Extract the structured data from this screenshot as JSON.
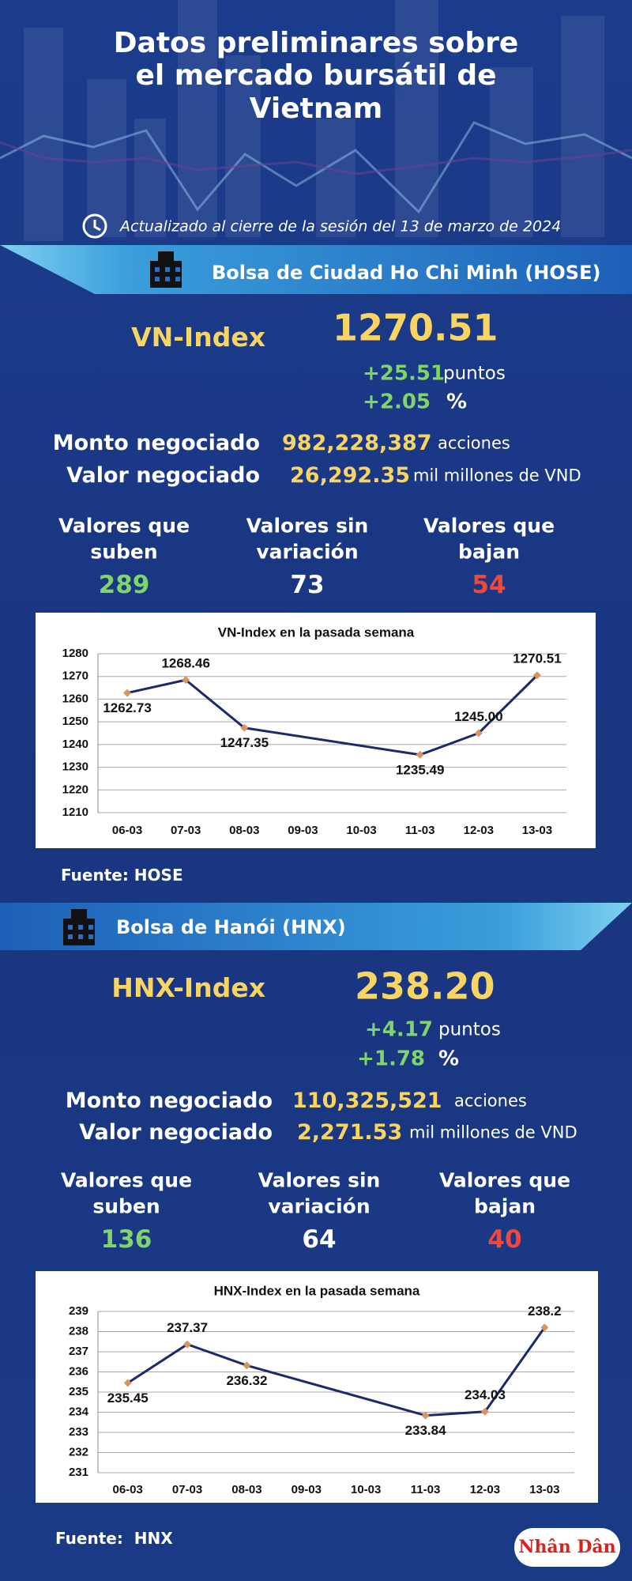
{
  "infographic": {
    "title": "Datos preliminares sobre el mercado bursátil de Vietnam",
    "updated": "Actualizado al cierre de la sesión del 13 de marzo de 2024",
    "logo": "Nhân Dân",
    "sections": [
      {
        "heading": "Bolsa de Ciudad Ho Chi Minh (HOSE)",
        "index_name": "VN-Index",
        "index_value": "1270.51",
        "change": "+25.51",
        "change_unit": "puntos",
        "pct": "+2.05",
        "pct_unit": "%",
        "volume_label": "Monto negociado",
        "volume": "982,228,387",
        "volume_unit": "acciones",
        "turnover_label": "Valor negociado",
        "turnover": "26,292.35",
        "turnover_unit": "mil millones de VND",
        "breadth": [
          {
            "label": "Valores que suben",
            "count": "289"
          },
          {
            "label": "Valores sin variación",
            "count": "73"
          },
          {
            "label": "Valores que bajan",
            "count": "54"
          }
        ],
        "source": "Fuente: HOSE"
      },
      {
        "heading": "Bolsa de Hanói (HNX)",
        "index_name": "HNX-Index",
        "index_value": "238.20",
        "change": "+4.17",
        "change_unit": "puntos",
        "pct": "+1.78",
        "pct_unit": "%",
        "volume_label": "Monto negociado",
        "volume": "110,325,521",
        "volume_unit": "acciones",
        "turnover_label": "Valor negociado",
        "turnover": "2,271.53",
        "turnover_unit": "mil millones de VND",
        "breadth": [
          {
            "label": "Valores que suben",
            "count": "136"
          },
          {
            "label": "Valores sin variación",
            "count": "64"
          },
          {
            "label": "Valores que bajan",
            "count": "40"
          }
        ],
        "source": "Fuente:  HNX"
      }
    ]
  },
  "chart_data": [
    {
      "type": "line",
      "title": "VN-Index en la pasada semana",
      "categories": [
        "06-03",
        "07-03",
        "08-03",
        "09-03",
        "10-03",
        "11-03",
        "12-03",
        "13-03"
      ],
      "values": [
        1262.73,
        1268.46,
        1247.35,
        null,
        null,
        1235.49,
        1245.0,
        1270.51
      ],
      "value_labels": [
        "1262.73",
        "1268.46",
        "1247.35",
        null,
        null,
        "1235.49",
        "1245.00",
        "1270.51"
      ],
      "color": "#1c2a6b",
      "marker_color": "#d9955f",
      "ylim": [
        1210,
        1280
      ],
      "yticks": [
        1210,
        1220,
        1230,
        1240,
        1250,
        1260,
        1270,
        1280
      ],
      "grid": true
    },
    {
      "type": "line",
      "title": "HNX-Index en la pasada semana",
      "categories": [
        "06-03",
        "07-03",
        "08-03",
        "09-03",
        "10-03",
        "11-03",
        "12-03",
        "13-03"
      ],
      "values": [
        235.45,
        237.37,
        236.32,
        null,
        null,
        233.84,
        234.03,
        238.2
      ],
      "value_labels": [
        "235.45",
        "237.37",
        "236.32",
        null,
        null,
        "233.84",
        "234.03",
        "238.2"
      ],
      "color": "#1c2a6b",
      "marker_color": "#d9955f",
      "ylim": [
        231,
        239
      ],
      "yticks": [
        231,
        232,
        233,
        234,
        235,
        236,
        237,
        238,
        239
      ],
      "grid": true
    }
  ]
}
